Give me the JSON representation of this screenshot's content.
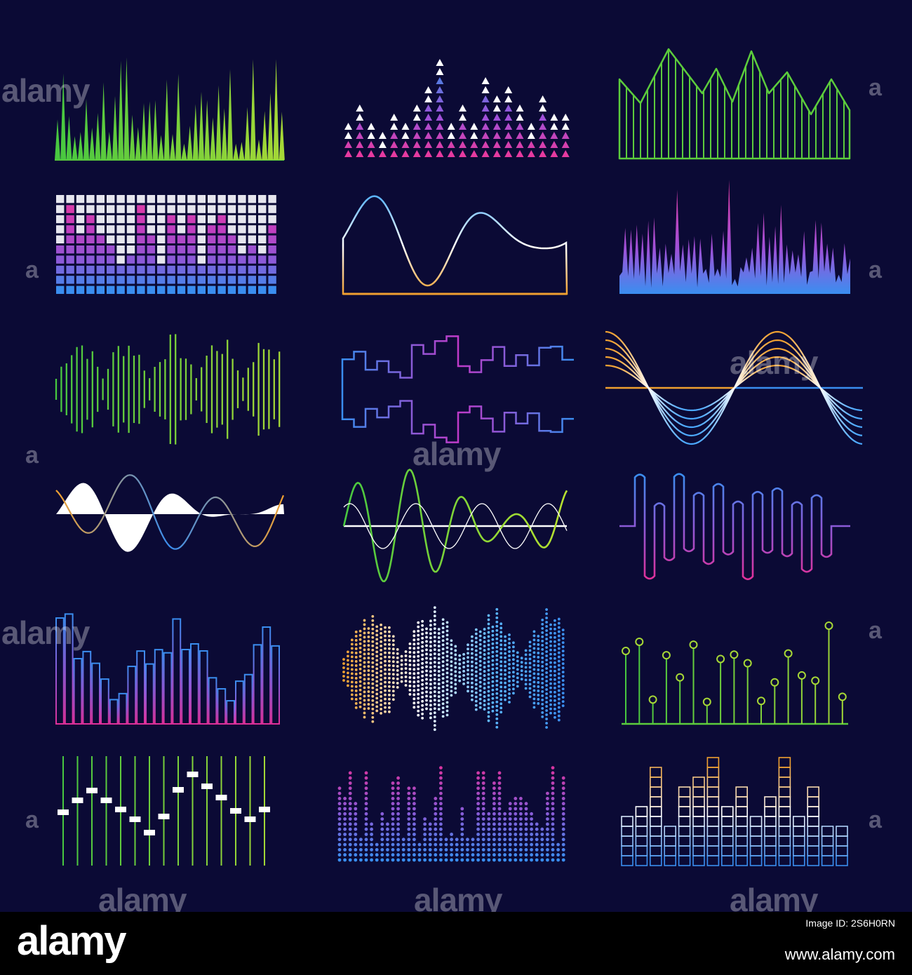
{
  "watermark": {
    "text": "alamy",
    "letter": "a"
  },
  "footer": {
    "logo": "alamy",
    "image_id_label": "Image ID: 2S6H0RN",
    "site": "www.alamy.com"
  },
  "colors": {
    "background": "#0b0a35",
    "green": "#5ccc3c",
    "lime": "#a7d836",
    "magenta": "#e0309a",
    "purple": "#8c5ad8",
    "blue": "#3a8ef0",
    "orange": "#f0a030",
    "white": "#ffffff"
  }
}
